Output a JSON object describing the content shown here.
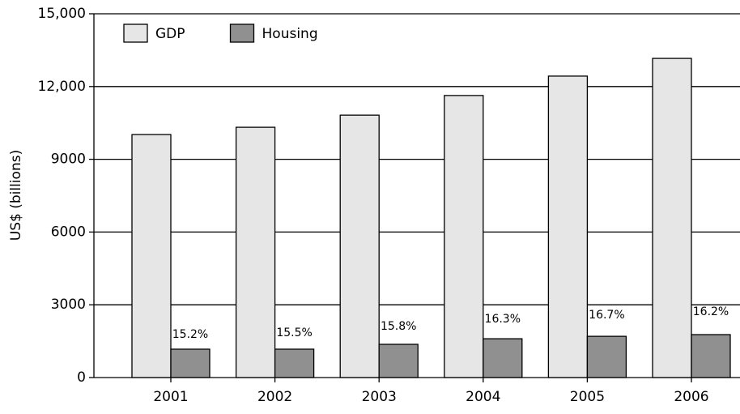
{
  "chart_data": {
    "type": "bar",
    "y_label": "US$ (billions)",
    "categories": [
      "2001",
      "2002",
      "2003",
      "2004",
      "2005",
      "2006"
    ],
    "series": [
      {
        "name": "GDP",
        "color": "#e6e6e6",
        "values": [
          10020,
          10320,
          10820,
          11630,
          12430,
          13160
        ]
      },
      {
        "name": "Housing",
        "color": "#909090",
        "values": [
          1170,
          1170,
          1370,
          1600,
          1700,
          1770
        ]
      }
    ],
    "annotations": [
      "15.2%",
      "15.5%",
      "15.8%",
      "16.3%",
      "16.7%",
      "16.2%"
    ],
    "ylim": [
      0,
      15000
    ],
    "yticks": [
      0,
      3000,
      6000,
      9000,
      {
        "value": 12000,
        "label": "12,000"
      },
      {
        "value": 15000,
        "label": "15,000"
      }
    ],
    "grid": true,
    "legend": "top-left"
  }
}
